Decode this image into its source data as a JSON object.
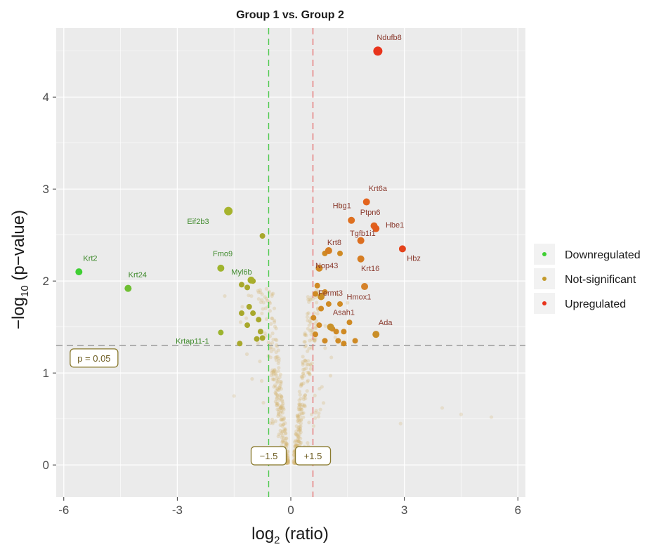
{
  "chart_data": {
    "type": "scatter",
    "title": "Group 1 vs. Group 2",
    "xlabel_main": "log",
    "xlabel_sub": "2",
    "xlabel_rest": " (ratio)",
    "ylabel_prefix": "−log",
    "ylabel_sub": "10",
    "ylabel_rest": " (p−value)",
    "xlim": [
      -6.2,
      6.2
    ],
    "ylim": [
      -0.35,
      4.75
    ],
    "x_ticks": [
      -6,
      -3,
      0,
      3,
      6
    ],
    "x_tick_labels": [
      "-6",
      "-3",
      "0",
      "3",
      "6"
    ],
    "y_ticks": [
      0,
      1,
      2,
      3,
      4
    ],
    "y_tick_labels": [
      "0",
      "1",
      "2",
      "3",
      "4"
    ],
    "grid": true,
    "legend_position": "right",
    "thresholds": {
      "p_line": 1.3,
      "p_label": "p = 0.05",
      "fc_low": -0.585,
      "fc_high": 0.585,
      "fc_low_label": "−1.5",
      "fc_high_label": "+1.5"
    },
    "colors": {
      "Downregulated": "#3fcf33",
      "Not-significant": "#c49a2a",
      "Upregulated": "#e8341c",
      "panel": "#ebebeb",
      "grid": "#ffffff",
      "down_line": "#4cc94c",
      "up_line": "#e57373",
      "p_line": "#999999"
    },
    "legend": [
      {
        "name": "Downregulated",
        "color": "#3fcf33"
      },
      {
        "name": "Not-significant",
        "color": "#c49a2a"
      },
      {
        "name": "Upregulated",
        "color": "#e8341c"
      }
    ],
    "labeled_points": [
      {
        "label": "Ndufb8",
        "x": 2.3,
        "y": 4.5,
        "color": "#e8341c",
        "r": 6.5,
        "lx": 2.6,
        "ly": 4.62
      },
      {
        "label": "Krt6a",
        "x": 2.0,
        "y": 2.86,
        "color": "#e3641e",
        "r": 5,
        "lx": 2.3,
        "ly": 2.98
      },
      {
        "label": "Hbg1",
        "x": 1.6,
        "y": 2.66,
        "color": "#de7020",
        "r": 5,
        "lx": 1.35,
        "ly": 2.79
      },
      {
        "label": "Ptpn6",
        "x": 2.2,
        "y": 2.6,
        "color": "#e0631f",
        "r": 5,
        "lx": 2.1,
        "ly": 2.72
      },
      {
        "label": "Hbe1",
        "x": 2.25,
        "y": 2.57,
        "color": "#e25c1e",
        "r": 5,
        "lx": 2.75,
        "ly": 2.58
      },
      {
        "label": "Tgfb1i1",
        "x": 1.85,
        "y": 2.44,
        "color": "#dc6e20",
        "r": 5,
        "lx": 1.9,
        "ly": 2.49
      },
      {
        "label": "Krt8",
        "x": 1.0,
        "y": 2.33,
        "color": "#d57e22",
        "r": 5,
        "lx": 1.15,
        "ly": 2.39
      },
      {
        "label": "Hbz",
        "x": 2.95,
        "y": 2.35,
        "color": "#e4431c",
        "r": 5,
        "lx": 3.25,
        "ly": 2.22
      },
      {
        "label": "Nop43",
        "x": 0.75,
        "y": 2.14,
        "color": "#d08a24",
        "r": 5,
        "lx": 0.95,
        "ly": 2.14
      },
      {
        "label": "Krt16",
        "x": 1.85,
        "y": 2.24,
        "color": "#d67d22",
        "r": 5,
        "lx": 2.1,
        "ly": 2.11
      },
      {
        "label": "Fermt3",
        "x": 0.8,
        "y": 1.83,
        "color": "#c98f25",
        "r": 5,
        "lx": 1.05,
        "ly": 1.84
      },
      {
        "label": "Hmox1",
        "x": 1.95,
        "y": 1.94,
        "color": "#d5822a",
        "r": 5,
        "lx": 1.8,
        "ly": 1.8
      },
      {
        "label": "Asah1",
        "x": 1.05,
        "y": 1.5,
        "color": "#c9922a",
        "r": 5,
        "lx": 1.4,
        "ly": 1.63
      },
      {
        "label": "Ada",
        "x": 2.25,
        "y": 1.42,
        "color": "#c98e28",
        "r": 5,
        "lx": 2.5,
        "ly": 1.52
      },
      {
        "label": "Krt2",
        "x": -5.6,
        "y": 2.1,
        "color": "#3fcf33",
        "r": 5,
        "lx": -5.3,
        "ly": 2.22
      },
      {
        "label": "Krt24",
        "x": -4.3,
        "y": 1.92,
        "color": "#6fbf33",
        "r": 5,
        "lx": -4.05,
        "ly": 2.04
      },
      {
        "label": "Eif2b3",
        "x": -1.65,
        "y": 2.76,
        "color": "#a6b32d",
        "r": 6,
        "lx": -2.45,
        "ly": 2.62
      },
      {
        "label": "Fmo9",
        "x": -1.85,
        "y": 2.14,
        "color": "#9fb42d",
        "r": 5,
        "lx": -1.8,
        "ly": 2.27
      },
      {
        "label": "Myl6b",
        "x": -1.05,
        "y": 2.01,
        "color": "#a8af2c",
        "r": 5,
        "lx": -1.3,
        "ly": 2.07
      },
      {
        "label": "Krtap11-1",
        "x": -1.85,
        "y": 1.44,
        "color": "#9cb42e",
        "r": 4,
        "lx": -2.6,
        "ly": 1.32
      }
    ],
    "other_sig_points": [
      {
        "x": -0.75,
        "y": 2.49
      },
      {
        "x": -1.3,
        "y": 1.96
      },
      {
        "x": -1.15,
        "y": 1.93
      },
      {
        "x": -1.0,
        "y": 2.0
      },
      {
        "x": -1.1,
        "y": 1.72
      },
      {
        "x": -1.3,
        "y": 1.65
      },
      {
        "x": -1.0,
        "y": 1.65
      },
      {
        "x": -0.85,
        "y": 1.58
      },
      {
        "x": -1.15,
        "y": 1.52
      },
      {
        "x": -0.8,
        "y": 1.45
      },
      {
        "x": -0.9,
        "y": 1.37
      },
      {
        "x": -0.75,
        "y": 1.38
      },
      {
        "x": -1.35,
        "y": 1.32
      },
      {
        "x": 0.9,
        "y": 2.3
      },
      {
        "x": 1.3,
        "y": 2.3
      },
      {
        "x": 0.7,
        "y": 1.95
      },
      {
        "x": 0.65,
        "y": 1.86
      },
      {
        "x": 0.9,
        "y": 1.88
      },
      {
        "x": 1.0,
        "y": 1.75
      },
      {
        "x": 1.3,
        "y": 1.75
      },
      {
        "x": 0.6,
        "y": 1.6
      },
      {
        "x": 0.75,
        "y": 1.52
      },
      {
        "x": 1.1,
        "y": 1.48
      },
      {
        "x": 1.2,
        "y": 1.45
      },
      {
        "x": 1.55,
        "y": 1.55
      },
      {
        "x": 1.4,
        "y": 1.45
      },
      {
        "x": 0.65,
        "y": 1.42
      },
      {
        "x": 0.9,
        "y": 1.35
      },
      {
        "x": 1.25,
        "y": 1.35
      },
      {
        "x": 1.4,
        "y": 1.32
      },
      {
        "x": 1.7,
        "y": 1.35
      },
      {
        "x": 0.8,
        "y": 1.7
      }
    ],
    "ns_cloud": {
      "count": 520,
      "color": "#d4b270"
    }
  }
}
